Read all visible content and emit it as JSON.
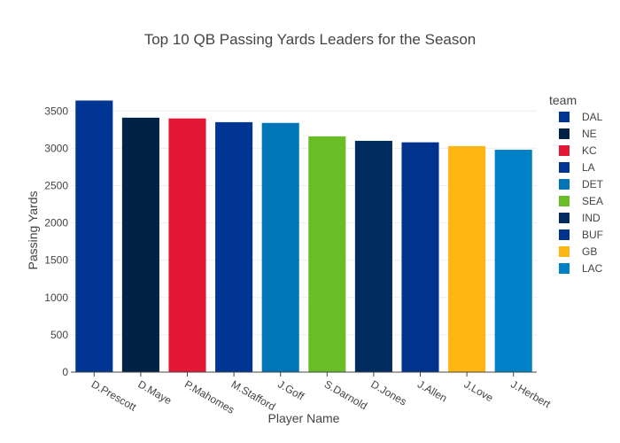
{
  "chart_data": {
    "type": "bar",
    "title": "Top 10 QB Passing Yards Leaders for the Season",
    "xlabel": "Player Name",
    "ylabel": "Passing Yards",
    "ylim": [
      0,
      3800
    ],
    "yticks": [
      0,
      500,
      1000,
      1500,
      2000,
      2500,
      3000,
      3500
    ],
    "grid": true,
    "legend_position": "right",
    "legend_title": "team",
    "categories": [
      "D.Prescott",
      "D.Maye",
      "P.Mahomes",
      "M.Stafford",
      "J.Goff",
      "S.Darnold",
      "D.Jones",
      "J.Allen",
      "J.Love",
      "J.Herbert"
    ],
    "values": [
      3640,
      3410,
      3400,
      3350,
      3340,
      3160,
      3100,
      3080,
      3030,
      2980
    ],
    "series": [
      {
        "name": "DAL",
        "color": "#003594",
        "category": "D.Prescott",
        "value": 3640
      },
      {
        "name": "NE",
        "color": "#002244",
        "category": "D.Maye",
        "value": 3410
      },
      {
        "name": "KC",
        "color": "#E31837",
        "category": "P.Mahomes",
        "value": 3400
      },
      {
        "name": "LA",
        "color": "#003594",
        "category": "M.Stafford",
        "value": 3350
      },
      {
        "name": "DET",
        "color": "#0076B6",
        "category": "J.Goff",
        "value": 3340
      },
      {
        "name": "SEA",
        "color": "#69BE28",
        "category": "S.Darnold",
        "value": 3160
      },
      {
        "name": "IND",
        "color": "#002C5F",
        "category": "D.Jones",
        "value": 3100
      },
      {
        "name": "BUF",
        "color": "#00338D",
        "category": "J.Allen",
        "value": 3080
      },
      {
        "name": "GB",
        "color": "#FFB612",
        "category": "J.Love",
        "value": 3030
      },
      {
        "name": "LAC",
        "color": "#0080C6",
        "category": "J.Herbert",
        "value": 2980
      }
    ]
  }
}
